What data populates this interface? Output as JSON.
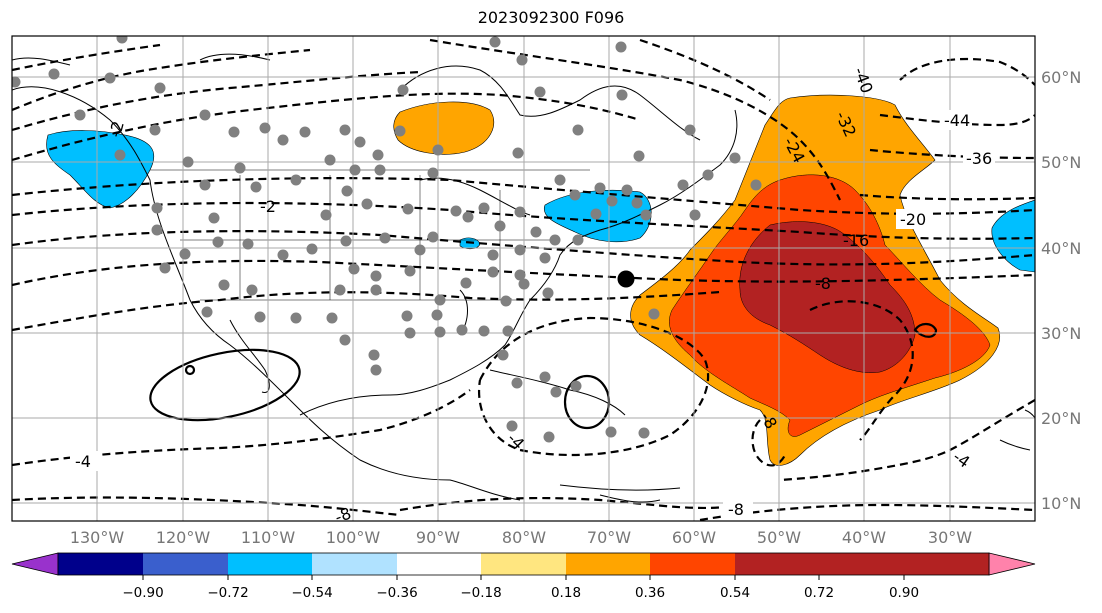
{
  "title": "2023092300 F096",
  "map": {
    "lat_labels": [
      "60°N",
      "50°N",
      "40°N",
      "30°N",
      "20°N",
      "10°N"
    ],
    "lon_labels": [
      "130°W",
      "120°W",
      "110°W",
      "100°W",
      "90°W",
      "80°W",
      "70°W",
      "60°W",
      "50°W",
      "40°W",
      "30°W"
    ],
    "contour_labels": [
      "-44",
      "-36",
      "-40",
      "-32",
      "-24",
      "-20",
      "-16",
      "-8",
      "-4",
      "-4",
      "-8",
      "-8",
      "-8",
      "-2",
      "-2",
      "-4"
    ],
    "colors": {
      "shade_1": "#ffa500",
      "shade_2": "#ff4500",
      "shade_3": "#b22222",
      "neg_shade": "#00bfff",
      "dots": "#808080"
    }
  },
  "colorbar": {
    "ticks": [
      "−0.90",
      "−0.72",
      "−0.54",
      "−0.36",
      "−0.18",
      "0.18",
      "0.36",
      "0.54",
      "0.72",
      "0.90"
    ],
    "colors": [
      "#9932cc",
      "#00008b",
      "#3a5fcd",
      "#00bfff",
      "#b0e2ff",
      "#ffffff",
      "#ffe680",
      "#ffa500",
      "#ff4500",
      "#b22222",
      "#ff82ab"
    ]
  }
}
